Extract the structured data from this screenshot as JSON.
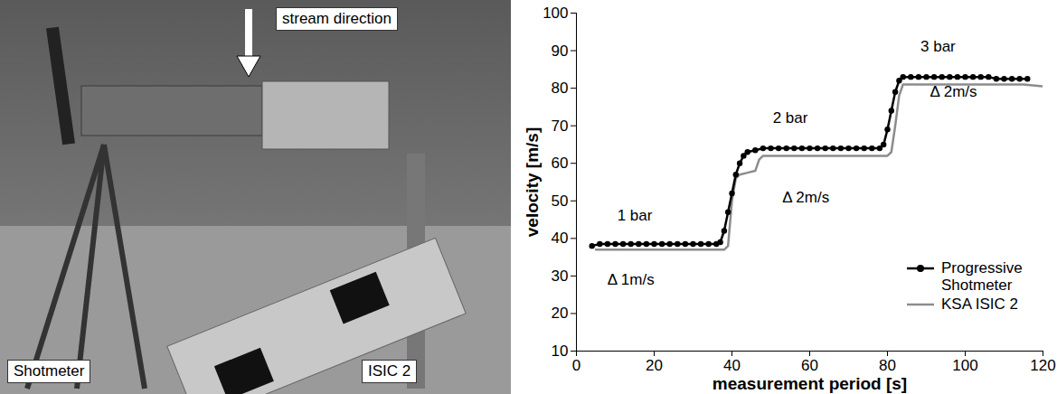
{
  "chart_data": {
    "type": "line",
    "x_label": "measurement period [s]",
    "y_label": "velocity [m/s]",
    "xlim": [
      0,
      120
    ],
    "xticks": [
      0,
      20,
      40,
      60,
      80,
      100,
      120
    ],
    "ylim": [
      10,
      100
    ],
    "yticks": [
      10,
      20,
      30,
      40,
      50,
      60,
      70,
      80,
      90,
      100
    ],
    "grid": false,
    "legend": "lower right",
    "series": [
      {
        "name": "Progressive Shotmeter",
        "color": "#000000",
        "marker": "circle",
        "line_style": "solid",
        "x": [
          4,
          6,
          8,
          10,
          12,
          14,
          16,
          18,
          20,
          22,
          24,
          26,
          28,
          30,
          32,
          34,
          36,
          37,
          38,
          39,
          40,
          41,
          42,
          43,
          44,
          46,
          48,
          50,
          52,
          54,
          56,
          58,
          60,
          62,
          64,
          66,
          68,
          70,
          72,
          74,
          76,
          78,
          79,
          80,
          81,
          82,
          83,
          84,
          86,
          88,
          90,
          92,
          94,
          96,
          98,
          100,
          102,
          104,
          106,
          108,
          110,
          112,
          114,
          116
        ],
        "values": [
          38,
          38.5,
          38.5,
          38.5,
          38.5,
          38.5,
          38.5,
          38.5,
          38.5,
          38.5,
          38.5,
          38.5,
          38.5,
          38.5,
          38.5,
          38.5,
          38.5,
          39,
          42,
          47,
          52,
          57,
          60,
          62,
          63,
          63.5,
          64,
          64,
          64,
          64,
          64,
          64,
          64,
          64,
          64,
          64,
          64,
          64,
          64,
          64,
          64,
          64,
          65,
          69,
          74,
          79,
          82,
          83,
          83,
          83,
          83,
          83,
          83,
          83,
          83,
          83,
          83,
          83,
          83,
          82.5,
          82.5,
          82.5,
          82.5,
          82.5
        ]
      },
      {
        "name": "KSA ISIC 2",
        "color": "#8c8c8c",
        "marker": "none",
        "line_style": "solid",
        "x": [
          5,
          10,
          20,
          30,
          38,
          39,
          40,
          41,
          42,
          44,
          46,
          47,
          48,
          60,
          70,
          80,
          81,
          82,
          83,
          84,
          90,
          100,
          110,
          115,
          120
        ],
        "values": [
          37,
          37,
          37,
          37,
          37,
          38,
          50,
          56,
          57,
          57.5,
          58,
          61,
          62,
          62,
          62,
          62,
          63,
          70,
          78,
          81,
          81,
          81,
          81,
          81,
          80.5
        ]
      }
    ],
    "annotations": [
      {
        "text": "1 bar",
        "x": 15,
        "y": 46
      },
      {
        "text": "2 bar",
        "x": 55,
        "y": 72
      },
      {
        "text": "3 bar",
        "x": 93,
        "y": 91
      },
      {
        "text": "Δ 1m/s",
        "x": 14,
        "y": 29
      },
      {
        "text": "Δ 2m/s",
        "x": 59,
        "y": 51
      },
      {
        "text": "Δ 2m/s",
        "x": 97,
        "y": 79
      }
    ]
  },
  "photo": {
    "labels": [
      "stream direction",
      "Shotmeter",
      "ISIC 2"
    ]
  }
}
